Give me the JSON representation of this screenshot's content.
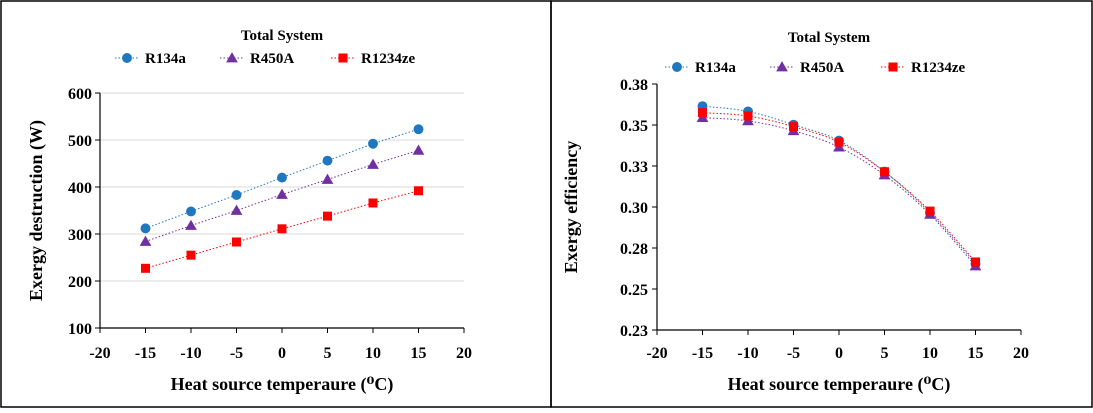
{
  "chart_data": [
    {
      "type": "scatter",
      "title": "Total System",
      "xlabel": "Heat source temperaure (⁰C)",
      "ylabel": "Exergy destruction (W)",
      "xlim": [
        -20,
        20
      ],
      "ylim": [
        100,
        600
      ],
      "xticks": [
        -20,
        -15,
        -10,
        -5,
        0,
        5,
        10,
        15,
        20
      ],
      "yticks": [
        100,
        200,
        300,
        400,
        500,
        600
      ],
      "ytick_decimals": 0,
      "grid": "horizontal",
      "legend": "top",
      "x": [
        -15,
        -10,
        -5,
        0,
        5,
        10,
        15
      ],
      "series": [
        {
          "name": "R134a",
          "marker": "circle",
          "color": "#1f77c0",
          "values": [
            312,
            348,
            383,
            420,
            456,
            492,
            523
          ]
        },
        {
          "name": "R450A",
          "marker": "triangle",
          "color": "#7030a0",
          "values": [
            284,
            318,
            350,
            384,
            416,
            448,
            478
          ]
        },
        {
          "name": "R1234ze",
          "marker": "square",
          "color": "#ff0000",
          "values": [
            227,
            255,
            283,
            311,
            338,
            366,
            392
          ]
        }
      ]
    },
    {
      "type": "scatter",
      "title": "Total System",
      "xlabel": "Heat source temperaure (⁰C)",
      "ylabel": "Exergy efficiency",
      "xlim": [
        -20,
        20
      ],
      "ylim": [
        0.225,
        0.375
      ],
      "xticks": [
        -20,
        -15,
        -10,
        -5,
        0,
        5,
        10,
        15,
        20
      ],
      "yticks": [
        0.225,
        0.25,
        0.275,
        0.3,
        0.325,
        0.35,
        0.375
      ],
      "ytick_labels": [
        "0.23",
        "0.25",
        "0.28",
        "0.30",
        "0.33",
        "0.35",
        "0.38"
      ],
      "grid": "none",
      "legend": "top",
      "x": [
        -15,
        -10,
        -5,
        0,
        5,
        10,
        15
      ],
      "series": [
        {
          "name": "R134a",
          "marker": "circle",
          "color": "#1f77c0",
          "values": [
            0.3615,
            0.3583,
            0.3502,
            0.3405,
            0.3216,
            0.2965,
            0.2655
          ]
        },
        {
          "name": "R450A",
          "marker": "triangle",
          "color": "#7030a0",
          "values": [
            0.3545,
            0.3525,
            0.3465,
            0.3365,
            0.3195,
            0.2955,
            0.264
          ]
        },
        {
          "name": "R1234ze",
          "marker": "square",
          "color": "#ff0000",
          "values": [
            0.3575,
            0.3555,
            0.349,
            0.3395,
            0.3215,
            0.2975,
            0.2665
          ]
        }
      ]
    }
  ]
}
